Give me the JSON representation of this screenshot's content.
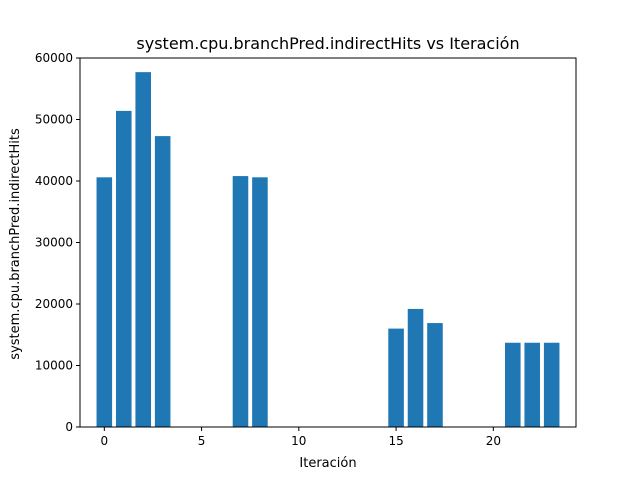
{
  "chart_data": {
    "type": "bar",
    "title": "system.cpu.branchPred.indirectHits vs Iteración",
    "xlabel": "Iteración",
    "ylabel": "system.cpu.branchPred.indirectHits",
    "x": [
      0,
      1,
      2,
      3,
      7,
      8,
      15,
      16,
      17,
      21,
      22,
      23
    ],
    "values": [
      40600,
      51400,
      57700,
      47300,
      40800,
      40600,
      16000,
      19200,
      16900,
      13700,
      13700,
      13700
    ],
    "xlim": [
      -1.25,
      24.25
    ],
    "ylim": [
      0,
      60000
    ],
    "xticks": [
      0,
      5,
      10,
      15,
      20
    ],
    "yticks": [
      0,
      10000,
      20000,
      30000,
      40000,
      50000,
      60000
    ],
    "bar_color": "#1f77b4",
    "grid": false,
    "legend": "none"
  }
}
